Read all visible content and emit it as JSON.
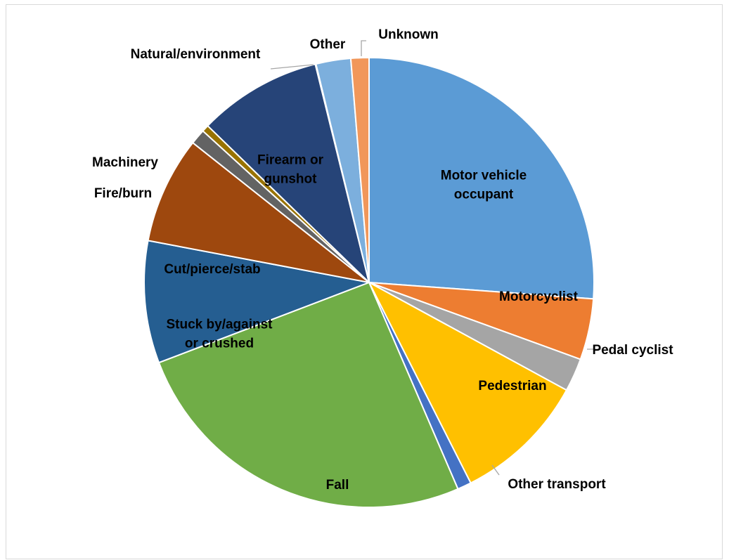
{
  "chart_data": {
    "type": "pie",
    "title": "",
    "slices": [
      {
        "label": "Motor vehicle occupant",
        "value": 26.2,
        "color": "#5B9BD5",
        "inside": true
      },
      {
        "label": "Motorcyclist",
        "value": 4.4,
        "color": "#ED7D31",
        "inside": true
      },
      {
        "label": "Pedal cyclist",
        "value": 2.4,
        "color": "#A5A5A5",
        "inside": false
      },
      {
        "label": "Pedestrian",
        "value": 9.6,
        "color": "#FFC000",
        "inside": true
      },
      {
        "label": "Other transport",
        "value": 1.0,
        "color": "#4472C4",
        "inside": false
      },
      {
        "label": "Fall",
        "value": 25.7,
        "color": "#70AD47",
        "inside": true
      },
      {
        "label": "Stuck by/against or crushed",
        "value": 8.8,
        "color": "#255E91",
        "inside": true
      },
      {
        "label": "Cut/pierce/stab",
        "value": 7.7,
        "color": "#9E480E",
        "inside": true
      },
      {
        "label": "Fire/burn",
        "value": 1.1,
        "color": "#636363",
        "inside": false
      },
      {
        "label": "Machinery",
        "value": 0.5,
        "color": "#997300",
        "inside": false
      },
      {
        "label": "Firearm or gunshot",
        "value": 8.9,
        "color": "#264478",
        "inside": true
      },
      {
        "label": "Natural/environment",
        "value": 0.05,
        "color": "#43682B",
        "inside": false
      },
      {
        "label": "Other",
        "value": 2.5,
        "color": "#7CAFDD",
        "inside": false
      },
      {
        "label": "Unknown",
        "value": 1.3,
        "color": "#F1975A",
        "inside": false
      }
    ]
  }
}
